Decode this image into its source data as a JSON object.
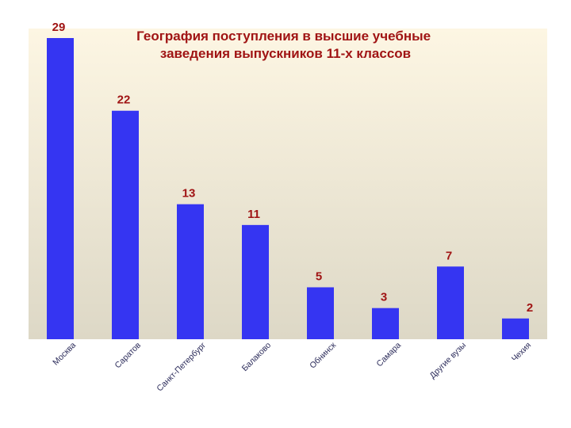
{
  "chart_data": {
    "type": "bar",
    "title": [
      "География поступления в высшие учебные",
      "заведения выпускников 11-х классов"
    ],
    "categories": [
      "Москва",
      "Саратов",
      "Санкт-Петербург",
      "Балаково",
      "Обнинск",
      "Самара",
      "Другие вузы",
      "Чехия"
    ],
    "values": [
      29,
      22,
      13,
      11,
      5,
      3,
      7,
      2
    ],
    "ylim": [
      0,
      29
    ],
    "grid": false,
    "legend": "none",
    "colors": {
      "bar": "#3535f2",
      "value_label": "#a01414",
      "title": "#a01414",
      "category_label": "#2b2b5a",
      "plot_bg_top": "#fdf6e3",
      "plot_bg_bottom": "#ddd8c6"
    }
  }
}
